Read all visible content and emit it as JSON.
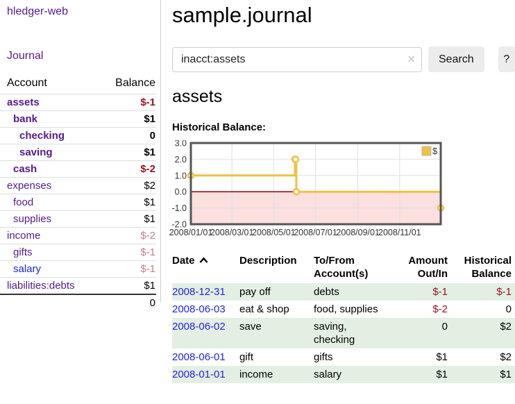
{
  "app": {
    "title": "hledger-web"
  },
  "sidebar": {
    "journal_link": "Journal",
    "accounts_table": {
      "account_header": "Account",
      "balance_header": "Balance",
      "rows": [
        {
          "name": "assets",
          "balance": "$-1",
          "indent": 0,
          "bold": true,
          "balance_class": "neg"
        },
        {
          "name": "bank",
          "balance": "$1",
          "indent": 1,
          "bold": true,
          "balance_class": ""
        },
        {
          "name": "checking",
          "balance": "0",
          "indent": 2,
          "bold": true,
          "balance_class": ""
        },
        {
          "name": "saving",
          "balance": "$1",
          "indent": 2,
          "bold": true,
          "balance_class": ""
        },
        {
          "name": "cash",
          "balance": "$-2",
          "indent": 1,
          "bold": true,
          "balance_class": "neg"
        },
        {
          "name": "expenses",
          "balance": "$2",
          "indent": 0,
          "bold": false,
          "balance_class": ""
        },
        {
          "name": "food",
          "balance": "$1",
          "indent": 1,
          "bold": false,
          "balance_class": ""
        },
        {
          "name": "supplies",
          "balance": "$1",
          "indent": 1,
          "bold": false,
          "balance_class": ""
        },
        {
          "name": "income",
          "balance": "$-2",
          "indent": 0,
          "bold": false,
          "balance_class": "neg-muted"
        },
        {
          "name": "gifts",
          "balance": "$-1",
          "indent": 1,
          "bold": false,
          "balance_class": "neg-muted"
        },
        {
          "name": "salary",
          "balance": "$-1",
          "indent": 1,
          "bold": false,
          "balance_class": "neg-muted",
          "link_style": "unvisited"
        },
        {
          "name": "liabilities:debts",
          "balance": "$1",
          "indent": 0,
          "bold": false,
          "balance_class": ""
        }
      ],
      "total": "0"
    }
  },
  "main": {
    "title": "sample.journal",
    "search": {
      "value": "inacct:assets",
      "clear_icon": "×",
      "button": "Search",
      "help_button": "?"
    },
    "account_heading": "assets",
    "chart_label": "Historical Balance:"
  },
  "chart_data": {
    "type": "line",
    "title": "Historical Balance:",
    "series": [
      {
        "name": "$",
        "color": "#edc240",
        "step": true,
        "points": [
          [
            "2008-01-01",
            1
          ],
          [
            "2008-06-01",
            2
          ],
          [
            "2008-06-02",
            2
          ],
          [
            "2008-06-03",
            0
          ],
          [
            "2008-12-31",
            -1
          ]
        ]
      }
    ],
    "x_domain": [
      "2008-01-01",
      "2008-12-31"
    ],
    "x_tick_labels": [
      "2008/01/01",
      "2008/03/01",
      "2008/05/01",
      "2008/07/01",
      "2008/09/01",
      "2008/11/01"
    ],
    "y_tick_labels": [
      "3.0",
      "2.0",
      "1.0",
      "0.0",
      "-1.0",
      "-2.0"
    ],
    "ylim": [
      -2,
      3
    ],
    "grid": true,
    "legend": {
      "label": "$",
      "position": "top-right"
    },
    "zero_line_color": "#8b0000",
    "negative_region_color": "#fcdfdf",
    "plot_border_color": "#545454",
    "grid_color": "#e0e0e0"
  },
  "register_table": {
    "headers": {
      "date": "Date",
      "description": "Description",
      "accounts": "To/From Account(s)",
      "amount": "Amount Out/In",
      "balance": "Historical Balance"
    },
    "rows": [
      {
        "date": "2008-12-31",
        "description": "pay off",
        "accounts": "debts",
        "amount": "$-1",
        "balance": "$-1",
        "amount_class": "neg",
        "balance_class": "neg"
      },
      {
        "date": "2008-06-03",
        "description": "eat & shop",
        "accounts": "food, supplies",
        "amount": "$-2",
        "balance": "0",
        "amount_class": "neg",
        "balance_class": ""
      },
      {
        "date": "2008-06-02",
        "description": "save",
        "accounts": "saving, checking",
        "amount": "0",
        "balance": "$2",
        "amount_class": "",
        "balance_class": ""
      },
      {
        "date": "2008-06-01",
        "description": "gift",
        "accounts": "gifts",
        "amount": "$1",
        "balance": "$2",
        "amount_class": "",
        "balance_class": ""
      },
      {
        "date": "2008-01-01",
        "description": "income",
        "accounts": "salary",
        "amount": "$1",
        "balance": "$1",
        "amount_class": "",
        "balance_class": ""
      }
    ]
  },
  "colors": {
    "link_visited": "#551a8b",
    "link_unvisited": "#2222dd",
    "negative": "#96131c",
    "negative_muted": "#c27f87",
    "row_stripe": "#e3efe3",
    "series_gold": "#edc240"
  }
}
